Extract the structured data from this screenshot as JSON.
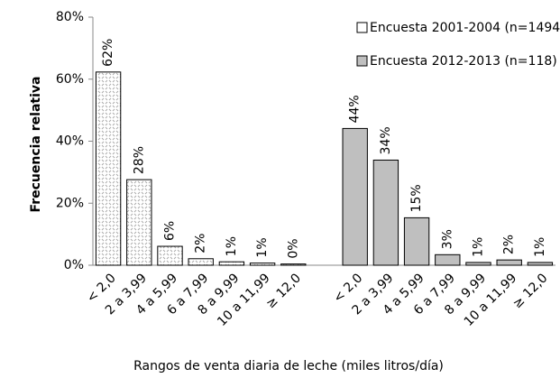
{
  "chart_data": {
    "type": "bar",
    "x_label": "Rangos de venta diaria de leche (miles litros/día)",
    "y_label": "Frecuencia relativa",
    "categories": [
      "< 2,0",
      "2 a 3,99",
      "4 a 5,99",
      "6 a 7,99",
      "8 a 9,99",
      "10 a 11,99",
      "≥ 12,0",
      null,
      "< 2,0",
      "2 a 3,99",
      "4 a 5,99",
      "6 a 7,99",
      "8 a 9,99",
      "10 a 11,99",
      "≥ 12,0"
    ],
    "series": [
      {
        "name": "Encuesta 2001-2004 (n=1494)",
        "color": "#ffffff",
        "pattern": "hatch",
        "values": [
          62.3,
          27.6,
          6.1,
          2.1,
          1.1,
          0.7,
          0.4,
          null,
          null,
          null,
          null,
          null,
          null,
          null,
          null
        ],
        "value_labels": [
          "62%",
          "28%",
          "6%",
          "2%",
          "1%",
          "1%",
          "0%",
          null,
          null,
          null,
          null,
          null,
          null,
          null,
          null
        ]
      },
      {
        "name": "Encuesta 2012-2013 (n=118)",
        "color": "#bfbfbf",
        "values": [
          null,
          null,
          null,
          null,
          null,
          null,
          null,
          null,
          44.1,
          33.9,
          15.3,
          3.4,
          0.9,
          1.7,
          0.9
        ],
        "value_labels": [
          null,
          null,
          null,
          null,
          null,
          null,
          null,
          null,
          "44%",
          "34%",
          "15%",
          "3%",
          "1%",
          "2%",
          "1%"
        ]
      }
    ],
    "ylim": [
      0,
      80
    ],
    "yticks": [
      {
        "value": 0,
        "label": "0%"
      },
      {
        "value": 20,
        "label": "20%"
      },
      {
        "value": 40,
        "label": "40%"
      },
      {
        "value": 60,
        "label": "60%"
      },
      {
        "value": 80,
        "label": "80%"
      }
    ],
    "grid": false,
    "legend": "upper right"
  }
}
